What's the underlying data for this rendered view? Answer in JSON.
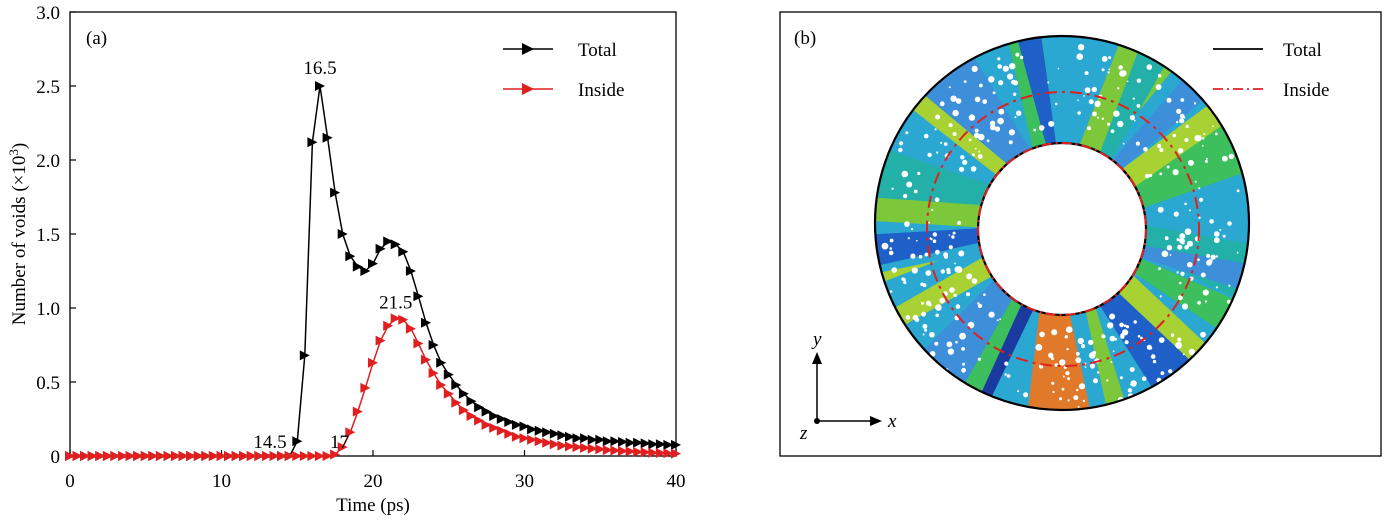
{
  "chart_data": [
    {
      "panel_label": "(a)",
      "type": "line",
      "xlabel": "Time (ps)",
      "ylabel_main": "Number of voids (",
      "ylabel_unit": "×10",
      "ylabel_exp": "3",
      "ylabel_close": ")",
      "xlim": [
        0,
        40
      ],
      "ylim": [
        0,
        3.0
      ],
      "xticks": [
        0,
        10,
        20,
        30,
        40
      ],
      "yticks": [
        "0",
        "0.5",
        "1.0",
        "1.5",
        "2.0",
        "2.5",
        "3.0"
      ],
      "grid": false,
      "legend_position": "top-right",
      "series": [
        {
          "name": "Total",
          "color": "#000000",
          "x": [
            0,
            0.5,
            1,
            1.5,
            2,
            2.5,
            3,
            3.5,
            4,
            4.5,
            5,
            5.5,
            6,
            6.5,
            7,
            7.5,
            8,
            8.5,
            9,
            9.5,
            10,
            10.5,
            11,
            11.5,
            12,
            12.5,
            13,
            13.5,
            14,
            14.5,
            15,
            15.5,
            16,
            16.5,
            17,
            17.5,
            18,
            18.5,
            19,
            19.5,
            20,
            20.5,
            21,
            21.5,
            22,
            22.5,
            23,
            23.5,
            24,
            24.5,
            25,
            25.5,
            26,
            26.5,
            27,
            27.5,
            28,
            28.5,
            29,
            29.5,
            30,
            30.5,
            31,
            31.5,
            32,
            32.5,
            33,
            33.5,
            34,
            34.5,
            35,
            35.5,
            36,
            36.5,
            37,
            37.5,
            38,
            38.5,
            39,
            39.5,
            40
          ],
          "y": [
            0,
            0,
            0,
            0,
            0,
            0,
            0,
            0,
            0,
            0,
            0,
            0,
            0,
            0,
            0,
            0,
            0,
            0,
            0,
            0,
            0,
            0,
            0,
            0,
            0,
            0,
            0,
            0,
            0,
            0,
            0.1,
            0.68,
            2.12,
            2.5,
            2.15,
            1.78,
            1.5,
            1.35,
            1.28,
            1.25,
            1.3,
            1.4,
            1.45,
            1.43,
            1.38,
            1.25,
            1.08,
            0.9,
            0.75,
            0.63,
            0.55,
            0.48,
            0.42,
            0.37,
            0.33,
            0.3,
            0.27,
            0.25,
            0.23,
            0.21,
            0.2,
            0.18,
            0.17,
            0.16,
            0.15,
            0.14,
            0.13,
            0.12,
            0.12,
            0.11,
            0.11,
            0.1,
            0.1,
            0.095,
            0.09,
            0.09,
            0.085,
            0.08,
            0.08,
            0.075,
            0.075
          ]
        },
        {
          "name": "Inside",
          "color": "#e02020",
          "x": [
            0,
            0.5,
            1,
            1.5,
            2,
            2.5,
            3,
            3.5,
            4,
            4.5,
            5,
            5.5,
            6,
            6.5,
            7,
            7.5,
            8,
            8.5,
            9,
            9.5,
            10,
            10.5,
            11,
            11.5,
            12,
            12.5,
            13,
            13.5,
            14,
            14.5,
            15,
            15.5,
            16,
            16.5,
            17,
            17.5,
            18,
            18.5,
            19,
            19.5,
            20,
            20.5,
            21,
            21.5,
            22,
            22.5,
            23,
            23.5,
            24,
            24.5,
            25,
            25.5,
            26,
            26.5,
            27,
            27.5,
            28,
            28.5,
            29,
            29.5,
            30,
            30.5,
            31,
            31.5,
            32,
            32.5,
            33,
            33.5,
            34,
            34.5,
            35,
            35.5,
            36,
            36.5,
            37,
            37.5,
            38,
            38.5,
            39,
            39.5,
            40
          ],
          "y": [
            0,
            0,
            0,
            0,
            0,
            0,
            0,
            0,
            0,
            0,
            0,
            0,
            0,
            0,
            0,
            0,
            0,
            0,
            0,
            0,
            0,
            0,
            0,
            0,
            0,
            0,
            0,
            0,
            0,
            0,
            0,
            0,
            0,
            0,
            0,
            0.01,
            0.06,
            0.16,
            0.3,
            0.46,
            0.63,
            0.78,
            0.88,
            0.93,
            0.92,
            0.86,
            0.76,
            0.65,
            0.56,
            0.48,
            0.42,
            0.36,
            0.31,
            0.27,
            0.24,
            0.21,
            0.19,
            0.17,
            0.15,
            0.13,
            0.12,
            0.11,
            0.1,
            0.09,
            0.08,
            0.07,
            0.065,
            0.06,
            0.055,
            0.05,
            0.045,
            0.04,
            0.037,
            0.034,
            0.031,
            0.028,
            0.025,
            0.022,
            0.02,
            0.018,
            0.016
          ]
        }
      ],
      "annotations": [
        {
          "text": "16.5",
          "x": 16.5,
          "y": 2.5
        },
        {
          "text": "21.5",
          "x": 21.5,
          "y": 0.93
        },
        {
          "text": "14.5",
          "x": 14.5,
          "y": 0
        },
        {
          "text": "17",
          "x": 17,
          "y": 0
        }
      ]
    },
    {
      "panel_label": "(b)",
      "type": "diagram",
      "legend_position": "top-right",
      "legend": [
        {
          "name": "Total",
          "color": "#000000",
          "style": "solid"
        },
        {
          "name": "Inside",
          "color": "#e02020",
          "style": "dash-dot"
        }
      ],
      "axes_labels": {
        "y": "y",
        "x": "x",
        "z": "z"
      },
      "grain_colors": [
        "#1f5fc8",
        "#3c8fd8",
        "#2aa8d2",
        "#22b0a8",
        "#3cbf5c",
        "#7cc83a",
        "#a8d234",
        "#e07a2a",
        "#1a3aa0"
      ]
    }
  ]
}
